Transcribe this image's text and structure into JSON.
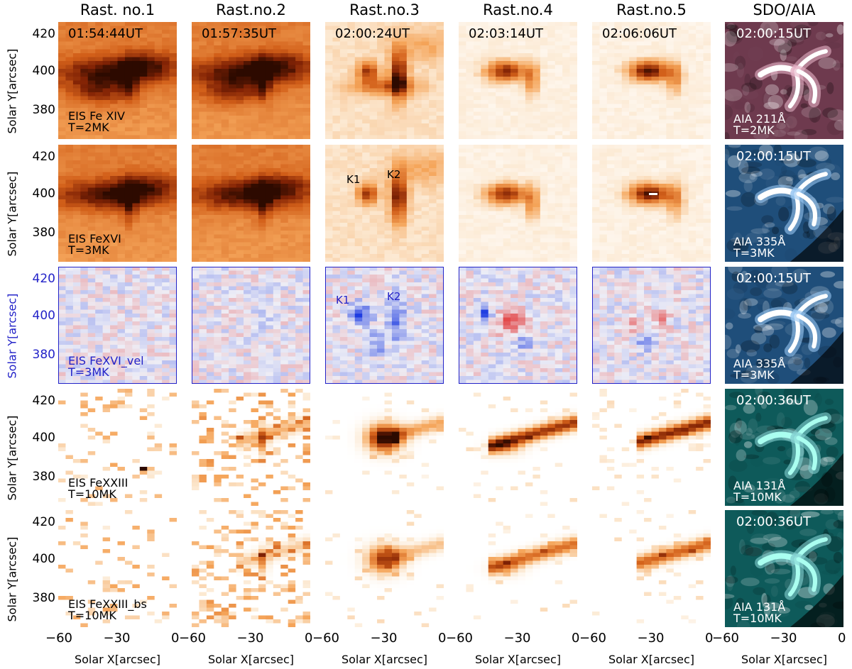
{
  "columns": [
    "Rast. no.1",
    "Rast.no.2",
    "Rast.no.3",
    "Rast.no.4",
    "Rast.no.5",
    "SDO/AIA"
  ],
  "y_axis": {
    "label": "Solar Y[arcsec]",
    "ticks": [
      "420",
      "400",
      "380"
    ]
  },
  "x_axis": {
    "label": "Solar X[arcsec]",
    "ticks": [
      "−60",
      "−30",
      "0"
    ]
  },
  "rows": [
    {
      "line": "EIS Fe XIV",
      "temp": "T=2MK",
      "times": [
        "01:54:44UT",
        "01:57:35UT",
        "02:00:24UT",
        "02:03:14UT",
        "02:06:06UT"
      ],
      "aia_time": "02:00:15UT",
      "aia_line": "AIA 211Å",
      "aia_temp": "T=2MK"
    },
    {
      "line": "EIS FeXVI",
      "temp": "T=3MK",
      "labels": [
        "K1",
        "K2"
      ],
      "aia_time": "02:00:15UT",
      "aia_line": "AIA 335Å",
      "aia_temp": "T=3MK"
    },
    {
      "line": "EIS FeXVI_vel",
      "temp": "T=3MK",
      "labels": [
        "K1",
        "K2"
      ],
      "aia_time": "02:00:15UT",
      "aia_line": "AIA 335Å",
      "aia_temp": "T=3MK"
    },
    {
      "line": "EIS FeXXIII",
      "temp": "T=10MK",
      "aia_time": "02:00:36UT",
      "aia_line": "AIA 131Å",
      "aia_temp": "T=10MK"
    },
    {
      "line": "EIS FeXXIII_bs",
      "temp": "T=10MK",
      "aia_time": "02:00:36UT",
      "aia_line": "AIA 131Å",
      "aia_temp": "T=10MK"
    }
  ],
  "colors": {
    "orange_dark": "#3a0e00",
    "orange_mid": "#d96a1f",
    "orange_light": "#fbe3c6",
    "blue_shift": "#1f3fe0",
    "red_shift": "#e03030",
    "vel_axis": "#2323c8",
    "aia_211": "#6e3a4e",
    "aia_335": "#1f4e7a",
    "aia_131": "#0e5a5a"
  }
}
